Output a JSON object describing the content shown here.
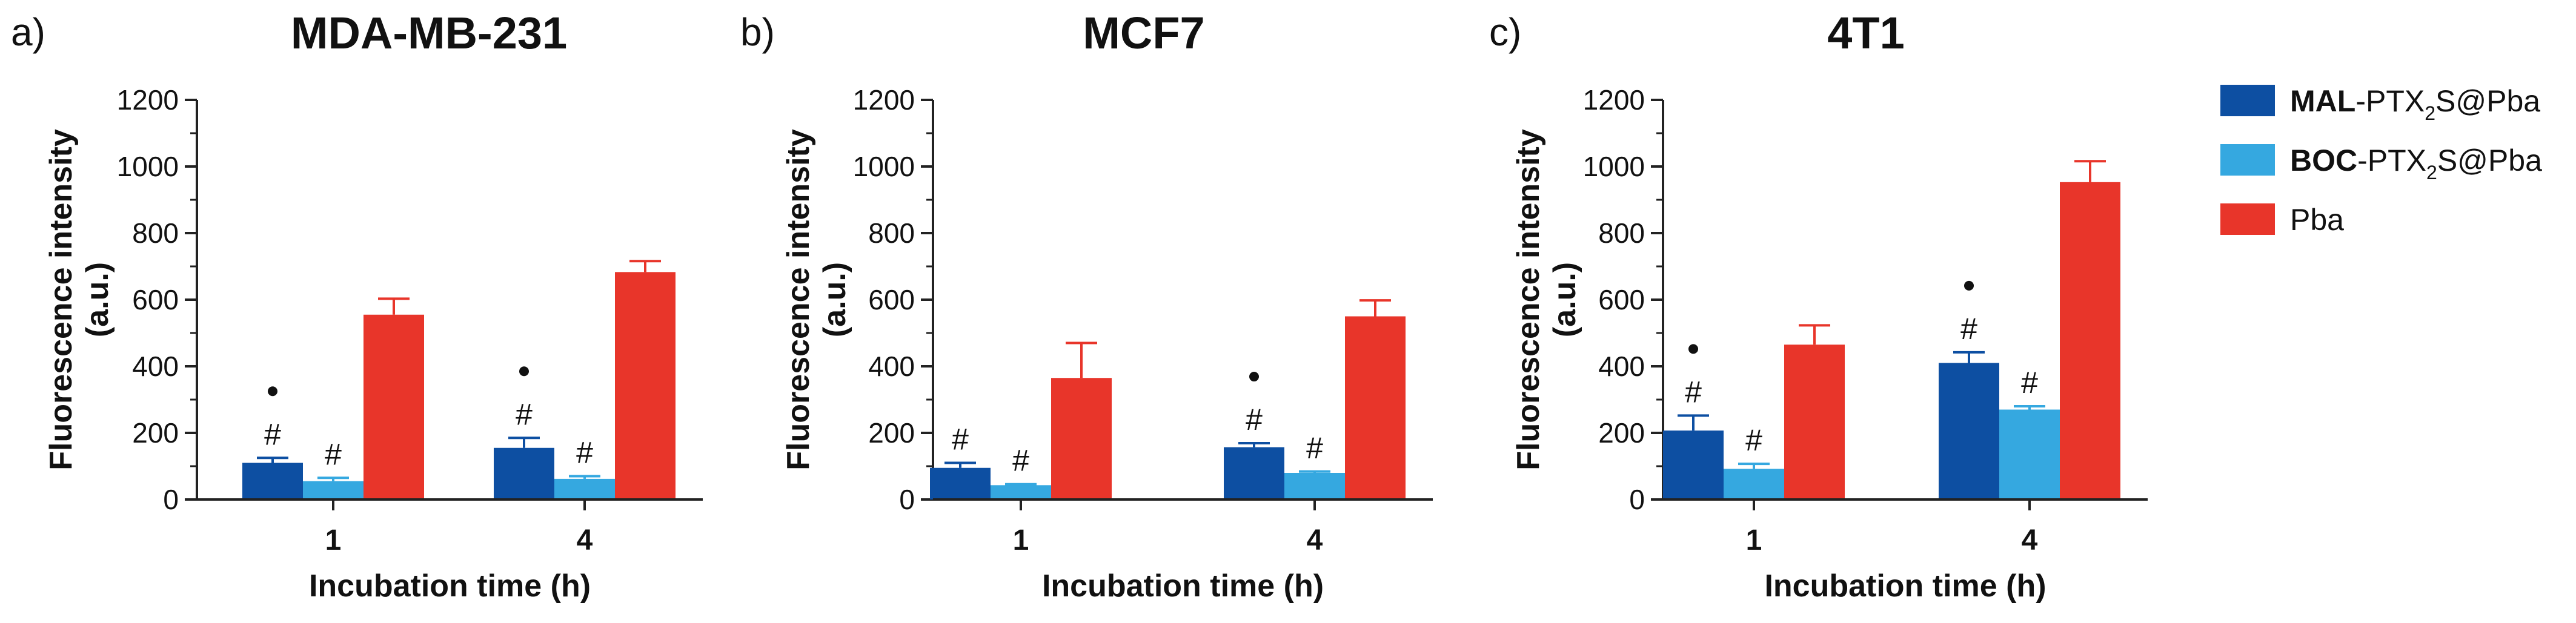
{
  "legend": [
    {
      "bold": "MAL",
      "text": "-PTX",
      "sub": "2",
      "suffix": "S@Pba",
      "color": "#0d4fa2"
    },
    {
      "bold": "BOC",
      "text": "-PTX",
      "sub": "2",
      "suffix": "S@Pba",
      "color": "#35a8e0"
    },
    {
      "bold": "",
      "text": "Pba",
      "sub": "",
      "suffix": "",
      "color": "#e8352a"
    }
  ],
  "chart_data": [
    {
      "type": "bar",
      "panel": "a)",
      "title": "MDA-MB-231",
      "xlabel": "Incubation time (h)",
      "ylabel_line1": "Fluorescence intensity",
      "ylabel_line2": "(a.u.)",
      "ylim": [
        0,
        1200
      ],
      "yticks": [
        0,
        200,
        400,
        600,
        800,
        1000,
        1200
      ],
      "categories": [
        "1",
        "4"
      ],
      "series": [
        {
          "name": "MAL-PTX2S@Pba",
          "color": "#0d4fa2",
          "values": [
            110,
            155
          ],
          "errors": [
            15,
            30
          ],
          "hash": [
            true,
            true
          ],
          "dot": [
            true,
            true
          ]
        },
        {
          "name": "BOC-PTX2S@Pba",
          "color": "#35a8e0",
          "values": [
            55,
            62
          ],
          "errors": [
            10,
            8
          ],
          "hash": [
            true,
            true
          ],
          "dot": [
            false,
            false
          ]
        },
        {
          "name": "Pba",
          "color": "#e8352a",
          "values": [
            555,
            683
          ],
          "errors": [
            48,
            33
          ],
          "hash": [
            false,
            false
          ],
          "dot": [
            false,
            false
          ]
        }
      ],
      "hash_symbol": "#"
    },
    {
      "type": "bar",
      "panel": "b)",
      "title": "MCF7",
      "xlabel": "Incubation time (h)",
      "ylabel_line1": "Fluorescence intensity",
      "ylabel_line2": "(a.u.)",
      "ylim": [
        0,
        1200
      ],
      "yticks": [
        0,
        200,
        400,
        600,
        800,
        1000,
        1200
      ],
      "categories": [
        "1",
        "4"
      ],
      "series": [
        {
          "name": "MAL-PTX2S@Pba",
          "color": "#0d4fa2",
          "values": [
            95,
            157
          ],
          "errors": [
            15,
            12
          ],
          "hash": [
            true,
            true
          ],
          "dot": [
            false,
            true
          ]
        },
        {
          "name": "BOC-PTX2S@Pba",
          "color": "#35a8e0",
          "values": [
            43,
            80
          ],
          "errors": [
            3,
            4
          ],
          "hash": [
            true,
            true
          ],
          "dot": [
            false,
            false
          ]
        },
        {
          "name": "Pba",
          "color": "#e8352a",
          "values": [
            365,
            550
          ],
          "errors": [
            105,
            48
          ],
          "hash": [
            false,
            false
          ],
          "dot": [
            false,
            false
          ]
        }
      ],
      "hash_symbol": "#"
    },
    {
      "type": "bar",
      "panel": "c)",
      "title": "4T1",
      "xlabel": "Incubation time (h)",
      "ylabel_line1": "Fluorescence intensity",
      "ylabel_line2": "(a.u.)",
      "ylim": [
        0,
        1200
      ],
      "yticks": [
        0,
        200,
        400,
        600,
        800,
        1000,
        1200
      ],
      "categories": [
        "1",
        "4"
      ],
      "series": [
        {
          "name": "MAL-PTX2S@Pba",
          "color": "#0d4fa2",
          "values": [
            207,
            410
          ],
          "errors": [
            45,
            32
          ],
          "hash": [
            true,
            true
          ],
          "dot": [
            true,
            true
          ]
        },
        {
          "name": "BOC-PTX2S@Pba",
          "color": "#35a8e0",
          "values": [
            92,
            270
          ],
          "errors": [
            15,
            10
          ],
          "hash": [
            true,
            true
          ],
          "dot": [
            false,
            false
          ]
        },
        {
          "name": "Pba",
          "color": "#e8352a",
          "values": [
            465,
            953
          ],
          "errors": [
            58,
            63
          ],
          "hash": [
            false,
            false
          ],
          "dot": [
            false,
            false
          ]
        }
      ],
      "hash_symbol": "#"
    }
  ]
}
